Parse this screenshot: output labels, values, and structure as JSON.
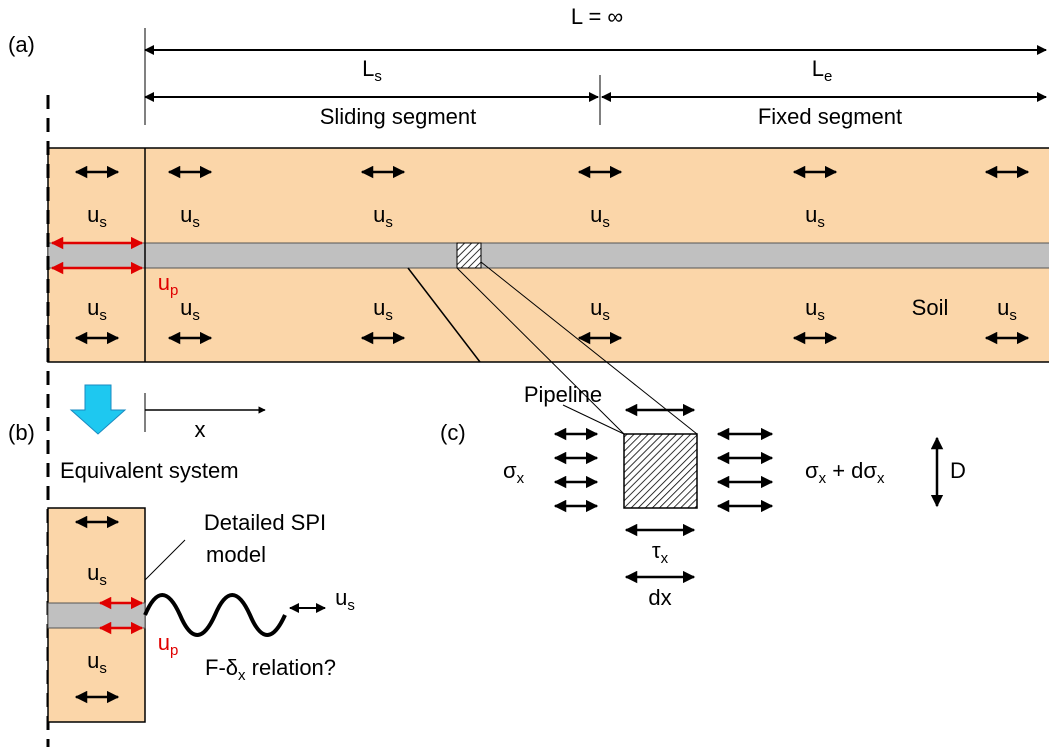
{
  "panels": {
    "a": "(a)",
    "b": "(b)",
    "c": "(c)"
  },
  "dimensions": {
    "total": "L = ∞",
    "sliding_length": {
      "main": "L",
      "sub": "s"
    },
    "fixed_length": {
      "main": "L",
      "sub": "e"
    },
    "sliding": "Sliding segment",
    "fixed": "Fixed segment"
  },
  "symbols": {
    "soil_disp": {
      "main": "u",
      "sub": "s"
    },
    "pipe_disp": {
      "main": "u",
      "sub": "p"
    }
  },
  "labels": {
    "soil": "Soil",
    "pipeline": "Pipeline",
    "x_axis": "x",
    "equivalent": "Equivalent system",
    "spi_line1": "Detailed SPI",
    "spi_line2": "model",
    "relation": {
      "pre": "F-δ",
      "sub": "x",
      "post": " relation?"
    },
    "stress_left": {
      "main": "σ",
      "sub": "x"
    },
    "stress_right": {
      "main": "σ",
      "sub": "x",
      "mid": " + dσ",
      "sub2": "x"
    },
    "diameter": "D",
    "shear": {
      "main": "τ",
      "sub": "x"
    },
    "length": "dx"
  }
}
